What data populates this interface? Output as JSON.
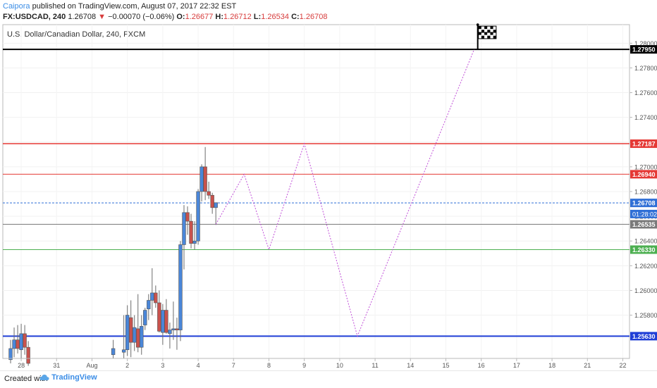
{
  "header": {
    "user": "Caipora",
    "published_text": " published on TradingView.com, August 07, 2017 22:32 EST",
    "symbol": "FX:USDCAD, 240",
    "last": "1.26708",
    "change": "▼",
    "change_value": "−0.00070 (−0.06%)",
    "o_label": "O:",
    "o": "1.26677",
    "h_label": "H:",
    "h": "1.26712",
    "l_label": "L:",
    "l": "1.26534",
    "c_label": "C:",
    "c": "1.26708"
  },
  "footer": {
    "created": "Created with",
    "brand": "TradingView"
  },
  "colors": {
    "up": "#4a86d8",
    "down": "#c8524d",
    "path": "#c04fd8",
    "black_line": "#000000",
    "red_line": "#e53935",
    "green_line": "#4caf50",
    "blue_line": "#1f3ed6",
    "dotted_current": "#2f6fd6",
    "gray_line": "#7a7a7a"
  },
  "chart_data": {
    "type": "candlestick",
    "title": "U.S. Dollar/Canadian Dollar, 240, FXCM",
    "ylim": [
      1.2545,
      1.2815
    ],
    "y_ticks": [
      "1.25800",
      "1.26000",
      "1.26200",
      "1.26400",
      "1.26600",
      "1.26800",
      "1.27000",
      "1.27200",
      "1.27400",
      "1.27600",
      "1.27800",
      "1.28000"
    ],
    "x_labels": [
      {
        "label": "28",
        "bar": 4
      },
      {
        "label": "31",
        "bar": 14
      },
      {
        "label": "Aug",
        "bar": 24
      },
      {
        "label": "2",
        "bar": 34
      },
      {
        "label": "3",
        "bar": 44
      },
      {
        "label": "4",
        "bar": 54
      },
      {
        "label": "7",
        "bar": 64
      },
      {
        "label": "8",
        "bar": 74
      },
      {
        "label": "9",
        "bar": 84
      },
      {
        "label": "10",
        "bar": 94
      },
      {
        "label": "11",
        "bar": 104
      },
      {
        "label": "14",
        "bar": 114
      },
      {
        "label": "15",
        "bar": 124
      },
      {
        "label": "16",
        "bar": 134
      },
      {
        "label": "17",
        "bar": 144
      },
      {
        "label": "18",
        "bar": 154
      },
      {
        "label": "21",
        "bar": 164
      },
      {
        "label": "22",
        "bar": 174
      }
    ],
    "candles": [
      {
        "i": 1,
        "o": 1.2544,
        "h": 1.256,
        "l": 1.2541,
        "c": 1.2553
      },
      {
        "i": 2,
        "o": 1.2553,
        "h": 1.257,
        "l": 1.2546,
        "c": 1.256
      },
      {
        "i": 3,
        "o": 1.256,
        "h": 1.2572,
        "l": 1.2549,
        "c": 1.2553
      },
      {
        "i": 4,
        "o": 1.2552,
        "h": 1.2573,
        "l": 1.2545,
        "c": 1.2565
      },
      {
        "i": 5,
        "o": 1.2565,
        "h": 1.2572,
        "l": 1.2548,
        "c": 1.2554
      },
      {
        "i": 6,
        "o": 1.2554,
        "h": 1.2559,
        "l": 1.2539,
        "c": 1.2541
      },
      {
        "i": 30,
        "o": 1.2548,
        "h": 1.256,
        "l": 1.2545,
        "c": 1.2553
      },
      {
        "i": 33,
        "o": 1.255,
        "h": 1.258,
        "l": 1.2545,
        "c": 1.2552
      },
      {
        "i": 34,
        "o": 1.2552,
        "h": 1.2588,
        "l": 1.2547,
        "c": 1.258
      },
      {
        "i": 35,
        "o": 1.2578,
        "h": 1.2592,
        "l": 1.2546,
        "c": 1.2558
      },
      {
        "i": 36,
        "o": 1.2558,
        "h": 1.258,
        "l": 1.2551,
        "c": 1.257
      },
      {
        "i": 37,
        "o": 1.2569,
        "h": 1.2597,
        "l": 1.255,
        "c": 1.2554
      },
      {
        "i": 38,
        "o": 1.2554,
        "h": 1.258,
        "l": 1.2548,
        "c": 1.2571
      },
      {
        "i": 39,
        "o": 1.2572,
        "h": 1.2586,
        "l": 1.2568,
        "c": 1.2584
      },
      {
        "i": 40,
        "o": 1.2585,
        "h": 1.2597,
        "l": 1.2576,
        "c": 1.2592
      },
      {
        "i": 41,
        "o": 1.2592,
        "h": 1.2618,
        "l": 1.258,
        "c": 1.2598
      },
      {
        "i": 42,
        "o": 1.2598,
        "h": 1.2604,
        "l": 1.2586,
        "c": 1.259
      },
      {
        "i": 43,
        "o": 1.259,
        "h": 1.26,
        "l": 1.2566,
        "c": 1.2567
      },
      {
        "i": 44,
        "o": 1.2566,
        "h": 1.2589,
        "l": 1.2556,
        "c": 1.2584
      },
      {
        "i": 45,
        "o": 1.2584,
        "h": 1.2593,
        "l": 1.2565,
        "c": 1.2566
      },
      {
        "i": 46,
        "o": 1.2565,
        "h": 1.2574,
        "l": 1.2553,
        "c": 1.2568
      },
      {
        "i": 47,
        "o": 1.2568,
        "h": 1.2591,
        "l": 1.256,
        "c": 1.2569
      },
      {
        "i": 48,
        "o": 1.2569,
        "h": 1.2578,
        "l": 1.2552,
        "c": 1.2568
      },
      {
        "i": 49,
        "o": 1.2568,
        "h": 1.264,
        "l": 1.2559,
        "c": 1.2637
      },
      {
        "i": 50,
        "o": 1.2637,
        "h": 1.2669,
        "l": 1.2617,
        "c": 1.2663
      },
      {
        "i": 51,
        "o": 1.2663,
        "h": 1.2668,
        "l": 1.2645,
        "c": 1.2656
      },
      {
        "i": 52,
        "o": 1.2656,
        "h": 1.2662,
        "l": 1.2634,
        "c": 1.2638
      },
      {
        "i": 53,
        "o": 1.2638,
        "h": 1.2656,
        "l": 1.2633,
        "c": 1.264
      },
      {
        "i": 54,
        "o": 1.264,
        "h": 1.2682,
        "l": 1.2637,
        "c": 1.268
      },
      {
        "i": 55,
        "o": 1.268,
        "h": 1.2702,
        "l": 1.2672,
        "c": 1.27
      },
      {
        "i": 56,
        "o": 1.27,
        "h": 1.2716,
        "l": 1.2673,
        "c": 1.268
      },
      {
        "i": 57,
        "o": 1.268,
        "h": 1.2688,
        "l": 1.2674,
        "c": 1.2677
      },
      {
        "i": 58,
        "o": 1.2677,
        "h": 1.2679,
        "l": 1.2662,
        "c": 1.2667
      },
      {
        "i": 59,
        "o": 1.2667,
        "h": 1.2671,
        "l": 1.2653,
        "c": 1.2671
      }
    ],
    "levels": [
      {
        "value": 1.2795,
        "label": "1.27950",
        "color": "#000000",
        "width": 2,
        "dash": ""
      },
      {
        "value": 1.27187,
        "label": "1.27187",
        "color": "#e53935",
        "width": 1.5,
        "dash": ""
      },
      {
        "value": 1.2694,
        "label": "1.26940",
        "color": "#e53935",
        "width": 1,
        "dash": ""
      },
      {
        "value": 1.26708,
        "label": "1.26708",
        "color": "#2f6fd6",
        "width": 1,
        "dash": "3,2"
      },
      {
        "value": 1.26535,
        "label": "1.26535",
        "color": "#7a7a7a",
        "width": 1,
        "dash": ""
      },
      {
        "value": 1.2633,
        "label": "1.26330",
        "color": "#4caf50",
        "width": 1,
        "dash": ""
      },
      {
        "value": 1.2563,
        "label": "1.25630",
        "color": "#1f3ed6",
        "width": 2,
        "dash": ""
      }
    ],
    "countdown": {
      "value": 1.26618,
      "label": "01:28:02"
    },
    "projection": [
      {
        "i": 59,
        "v": 1.26535
      },
      {
        "i": 67,
        "v": 1.2694
      },
      {
        "i": 74,
        "v": 1.2633
      },
      {
        "i": 84,
        "v": 1.27187
      },
      {
        "i": 99,
        "v": 1.2563
      },
      {
        "i": 132,
        "v": 1.2795
      }
    ],
    "flag": {
      "i": 134,
      "v": 1.2795
    }
  }
}
